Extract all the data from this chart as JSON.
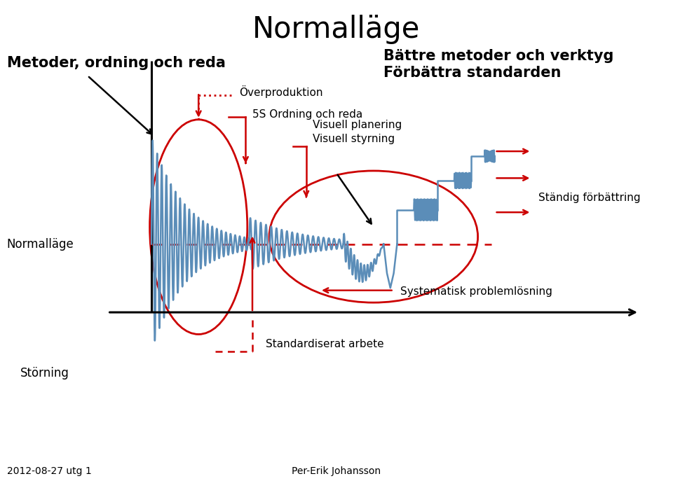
{
  "title": "Normalläge",
  "title_fontsize": 30,
  "subtitle_left": "Metoder, ordning och reda",
  "subtitle_right": "Bättre metoder och verktyg\nFörbättra standarden",
  "label_overproduktion": "Överproduktion",
  "label_5s": "5S Ordning och reda",
  "label_visuell": "Visuell planering\nVisuell styrning",
  "label_normalläge": "Normalläge",
  "label_störning": "Störning",
  "label_standardiserat": "Standardiserat arbete",
  "label_systematisk": "Systematisk problemlösning",
  "label_ständig": "Ständig förbättring",
  "bg_color": "#ffffff",
  "signal_color": "#5b8db8",
  "red_color": "#cc0000",
  "black_color": "#000000",
  "footer_left": "2012-08-27 utg 1",
  "footer_center": "Per-Erik Johansson"
}
